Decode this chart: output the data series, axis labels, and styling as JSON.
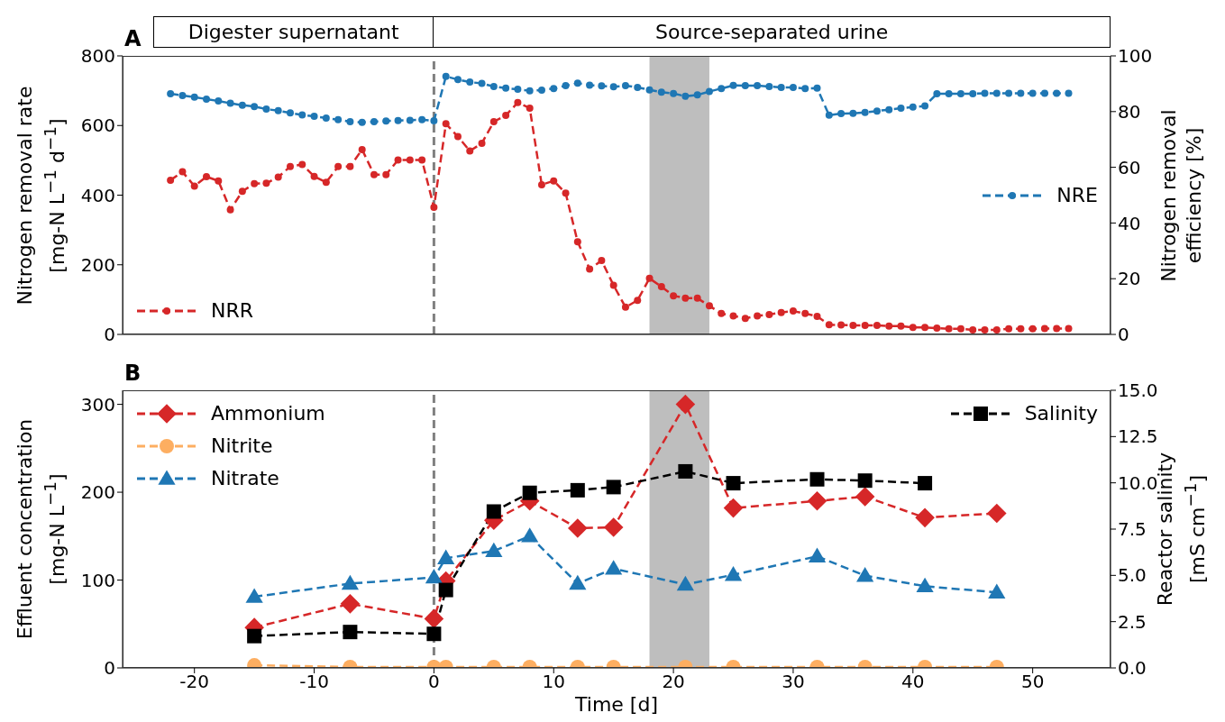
{
  "chart_data": [
    {
      "type": "line",
      "title": "A",
      "annotations": [
        "Digester supernatant",
        "Source-separated urine"
      ],
      "ylabel": "Nitrogen removal rate\n[mg-N L$^{−1}$ d$^{−1}$]",
      "y2label": "Nitrogen removal\nefficiency [%]",
      "x": [
        -22,
        -21,
        -20,
        -19,
        -18,
        -17,
        -16,
        -15,
        -14,
        -13,
        -12,
        -11,
        -10,
        -9,
        -8,
        -7,
        -6,
        -5,
        -4,
        -3,
        -2,
        -1,
        0,
        1,
        2,
        3,
        4,
        5,
        6,
        7,
        8,
        9,
        10,
        11,
        12,
        13,
        14,
        15,
        16,
        17,
        18,
        19,
        20,
        21,
        22,
        23,
        24,
        25,
        26,
        27,
        28,
        29,
        30,
        31,
        32,
        33,
        34,
        35,
        36,
        37,
        38,
        39,
        40,
        41,
        42,
        43,
        44,
        45,
        46,
        47,
        48,
        49,
        50,
        51,
        52,
        53
      ],
      "series": [
        {
          "name": "NRR",
          "color": "#d62728",
          "marker": "circle",
          "values": [
            443,
            467,
            426,
            453,
            441,
            358,
            411,
            433,
            434,
            452,
            482,
            488,
            454,
            437,
            482,
            482,
            531,
            459,
            459,
            501,
            501,
            501,
            365,
            605,
            568,
            527,
            549,
            611,
            629,
            666,
            650,
            430,
            441,
            406,
            266,
            188,
            212,
            141,
            78,
            98,
            161,
            137,
            111,
            104,
            104,
            82,
            60,
            53,
            46,
            53,
            57,
            63,
            67,
            60,
            52,
            28,
            27,
            26,
            26,
            26,
            24,
            24,
            20,
            20,
            18,
            16,
            16,
            13,
            13,
            13,
            16,
            16,
            16,
            17,
            17,
            17
          ]
        },
        {
          "name": "NRE",
          "color": "#1f77b4",
          "marker": "circle",
          "axis": "y2",
          "values": [
            86.4,
            85.8,
            85.2,
            84.5,
            83.8,
            83.0,
            82.3,
            81.8,
            80.9,
            80.3,
            79.5,
            78.8,
            78.3,
            77.7,
            77.1,
            76.4,
            76.1,
            76.4,
            76.6,
            76.8,
            76.9,
            77.1,
            76.7,
            92.6,
            91.5,
            90.6,
            90.1,
            89.0,
            88.4,
            88.0,
            87.5,
            87.7,
            88.3,
            89.3,
            90.2,
            89.5,
            89.2,
            88.9,
            89.3,
            88.7,
            87.8,
            87.0,
            86.5,
            85.5,
            86.0,
            87.2,
            88.3,
            89.4,
            89.3,
            89.3,
            89.0,
            88.7,
            88.7,
            88.3,
            88.4,
            78.7,
            79.3,
            79.4,
            79.7,
            80.2,
            80.7,
            81.2,
            81.6,
            82.0,
            86.4,
            86.4,
            86.4,
            86.4,
            86.6,
            86.6,
            86.6,
            86.6,
            86.6,
            86.6,
            86.6,
            86.6
          ]
        }
      ],
      "xlim": [
        -26,
        56.5
      ],
      "xticks": [
        -20,
        -10,
        0,
        10,
        20,
        30,
        40,
        50
      ],
      "ylim": [
        0,
        800
      ],
      "yticks": [
        0,
        200,
        400,
        600,
        800
      ],
      "y2lim": [
        0,
        100
      ],
      "y2ticks": [
        0,
        20,
        40,
        60,
        80,
        100
      ],
      "tick_labels": "y",
      "line_style": "dashed",
      "grid": false,
      "legend": "bottom left",
      "ref_lines": [
        {
          "axis": "x",
          "value": 0,
          "color": "#808080",
          "line_style": "dashed"
        }
      ],
      "bands": [
        {
          "axis": "x",
          "from": 18,
          "to": 23,
          "color": "#bebebe"
        }
      ]
    },
    {
      "type": "line",
      "title": "B",
      "xlabel": "Time [d]",
      "ylabel": "Effluent concentration\n[mg-N L$^{−1}$]",
      "y2label": "Reactor salinity\n[mS cm$^{−1}$]",
      "x": [
        -15,
        -7,
        0,
        1,
        5,
        8,
        12,
        15,
        21,
        25,
        32,
        36,
        41,
        47
      ],
      "series": [
        {
          "name": "Ammonium",
          "color": "#d62728",
          "marker": "diamond",
          "values": [
            46,
            73,
            56,
            99,
            168,
            190,
            159,
            160,
            300,
            182,
            190,
            195,
            171,
            176
          ]
        },
        {
          "name": "Nitrite",
          "color": "#fdae61",
          "marker": "circle",
          "values": [
            3,
            1,
            1,
            1,
            1,
            1,
            1,
            1,
            1,
            1,
            1,
            1,
            1,
            1
          ]
        },
        {
          "name": "Nitrate",
          "color": "#1f77b4",
          "marker": "triangle",
          "values": [
            81,
            96,
            103,
            125,
            133,
            150,
            96,
            113,
            95,
            106,
            127,
            105,
            93,
            86
          ]
        },
        {
          "name": "Salinity",
          "color": "#000000",
          "marker": "square",
          "axis": "y2",
          "x": [
            -15,
            -7,
            0,
            1,
            5,
            8,
            12,
            15,
            21,
            25,
            32,
            36,
            41
          ],
          "values": [
            1.72,
            1.94,
            1.84,
            4.21,
            8.45,
            9.46,
            9.6,
            9.77,
            10.62,
            9.98,
            10.19,
            10.12,
            9.98
          ]
        }
      ],
      "xlim": [
        -26,
        56.5
      ],
      "xticks": [
        -20,
        -10,
        0,
        10,
        20,
        30,
        40,
        50
      ],
      "ylim": [
        0,
        316
      ],
      "yticks": [
        0,
        100,
        200,
        300
      ],
      "y2lim": [
        0,
        15
      ],
      "y2ticks": [
        {
          "value": 0,
          "label": "0.0"
        },
        {
          "value": 2.5,
          "label": "2.5"
        },
        {
          "value": 5,
          "label": "5.0"
        },
        {
          "value": 7.5,
          "label": "7.5"
        },
        {
          "value": 10,
          "label": "10.0"
        },
        {
          "value": 12.5,
          "label": "12.5"
        },
        {
          "value": 15,
          "label": "15.0"
        }
      ],
      "line_style": "dashed",
      "grid": false,
      "legend": "top left",
      "ref_lines": [
        {
          "axis": "x",
          "value": 0,
          "color": "#808080",
          "line_style": "dashed"
        }
      ],
      "bands": [
        {
          "axis": "x",
          "from": 18,
          "to": 23,
          "color": "#bebebe"
        }
      ]
    }
  ]
}
